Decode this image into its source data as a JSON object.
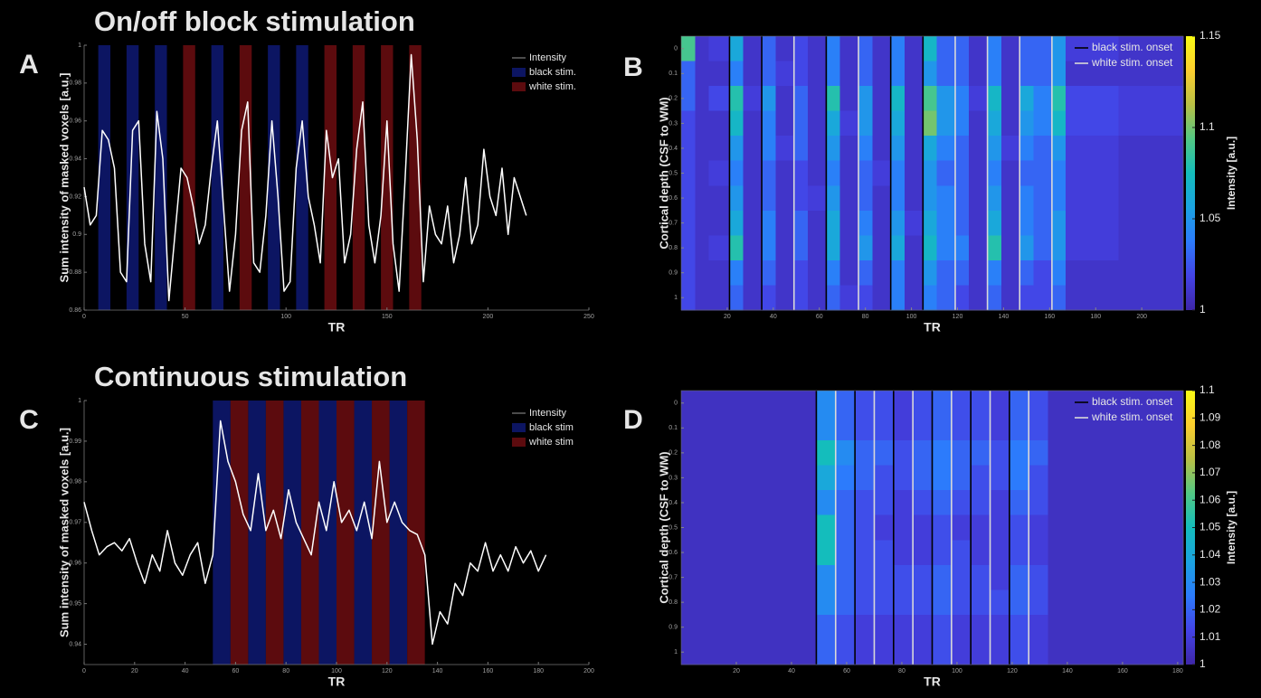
{
  "chart_data": [
    {
      "type": "line",
      "panel": "A",
      "title": "On/off block stimulation",
      "xlabel": "TR",
      "ylabel": "Sum intensity of masked voxels [a.u.]",
      "xlim": [
        0,
        250
      ],
      "xticks": [
        0,
        50,
        100,
        150,
        200,
        250
      ],
      "ylim": [
        0.86,
        1
      ],
      "yticks": [
        0.86,
        0.88,
        0.9,
        0.92,
        0.94,
        0.96,
        0.98,
        1
      ],
      "legend": "upper right",
      "x": [
        0,
        3,
        6,
        9,
        12,
        15,
        18,
        21,
        24,
        27,
        30,
        33,
        36,
        39,
        42,
        45,
        48,
        51,
        54,
        57,
        60,
        63,
        66,
        69,
        72,
        75,
        78,
        81,
        84,
        87,
        90,
        93,
        96,
        99,
        102,
        105,
        108,
        111,
        114,
        117,
        120,
        123,
        126,
        129,
        132,
        135,
        138,
        141,
        144,
        147,
        150,
        153,
        156,
        159,
        162,
        165,
        168,
        171,
        174,
        177,
        180,
        183,
        186,
        189,
        192,
        195,
        198,
        201,
        204,
        207,
        210,
        213,
        216,
        219
      ],
      "series": [
        {
          "name": "Intensity",
          "color": "#ffffff",
          "values": [
            0.925,
            0.905,
            0.91,
            0.955,
            0.95,
            0.935,
            0.88,
            0.875,
            0.955,
            0.96,
            0.895,
            0.875,
            0.965,
            0.94,
            0.865,
            0.9,
            0.935,
            0.93,
            0.915,
            0.895,
            0.905,
            0.935,
            0.96,
            0.915,
            0.87,
            0.9,
            0.955,
            0.97,
            0.885,
            0.88,
            0.91,
            0.96,
            0.92,
            0.87,
            0.875,
            0.935,
            0.96,
            0.92,
            0.905,
            0.885,
            0.955,
            0.93,
            0.94,
            0.885,
            0.9,
            0.945,
            0.97,
            0.905,
            0.885,
            0.91,
            0.96,
            0.895,
            0.87,
            0.93,
            0.995,
            0.95,
            0.875,
            0.915,
            0.9,
            0.895,
            0.915,
            0.885,
            0.9,
            0.93,
            0.895,
            0.905,
            0.945,
            0.92,
            0.91,
            0.935,
            0.9,
            0.93,
            0.92,
            0.91
          ]
        }
      ],
      "bands": [
        {
          "name": "black stim.",
          "color": "#0c1562",
          "intervals": [
            [
              7,
              13
            ],
            [
              21,
              27
            ],
            [
              35,
              41
            ],
            [
              63,
              69
            ],
            [
              91,
              97
            ],
            [
              105,
              111
            ]
          ]
        },
        {
          "name": "white stim.",
          "color": "#5c0b0e",
          "intervals": [
            [
              49,
              55
            ],
            [
              77,
              83
            ],
            [
              119,
              125
            ],
            [
              133,
              139
            ],
            [
              147,
              153
            ],
            [
              161,
              167
            ]
          ]
        }
      ]
    },
    {
      "type": "heatmap",
      "panel": "B",
      "xlabel": "TR",
      "ylabel": "Cortical depth (CSF to WM)",
      "colorbar_label": "Intensity [a.u.]",
      "xlim": [
        0,
        218
      ],
      "xticks": [
        20,
        40,
        60,
        80,
        100,
        120,
        140,
        160,
        180,
        200
      ],
      "ylim": [
        -0.05,
        1.05
      ],
      "yticks": [
        0,
        0.1,
        0.2,
        0.3,
        0.4,
        0.5,
        0.6,
        0.7,
        0.8,
        0.9,
        1
      ],
      "zlim": [
        1,
        1.15
      ],
      "zticks": [
        1,
        1.05,
        1.1,
        1.15
      ],
      "colormap": [
        "#3e26a8",
        "#4443e6",
        "#2c7bfc",
        "#1ba3e1",
        "#14bdbc",
        "#52c884",
        "#b9c045",
        "#fcce2e",
        "#f9fb14"
      ],
      "legend": "upper right",
      "x_edges": [
        0,
        6,
        12,
        21,
        27,
        35,
        41,
        49,
        55,
        63,
        69,
        77,
        83,
        91,
        97,
        105,
        111,
        119,
        125,
        133,
        139,
        147,
        153,
        161,
        167,
        190,
        218
      ],
      "values": [
        [
          1.09,
          1.03,
          1.03,
          1.02,
          1.02,
          1.02,
          1.02,
          1.02,
          1.02,
          1.02,
          1.02
        ],
        [
          1.01,
          1.01,
          1.01,
          1.01,
          1.01,
          1.01,
          1.01,
          1.01,
          1.01,
          1.01,
          1.01
        ],
        [
          1.015,
          1.01,
          1.02,
          1.01,
          1.01,
          1.015,
          1.01,
          1.01,
          1.015,
          1.01,
          1.01
        ],
        [
          1.06,
          1.04,
          1.08,
          1.07,
          1.05,
          1.04,
          1.05,
          1.06,
          1.08,
          1.04,
          1.03
        ],
        [
          1.01,
          1.01,
          1.015,
          1.01,
          1.01,
          1.01,
          1.01,
          1.01,
          1.01,
          1.01,
          1.01
        ],
        [
          1.03,
          1.03,
          1.05,
          1.04,
          1.04,
          1.03,
          1.03,
          1.04,
          1.04,
          1.03,
          1.02
        ],
        [
          1.01,
          1.015,
          1.01,
          1.01,
          1.015,
          1.01,
          1.01,
          1.01,
          1.01,
          1.01,
          1.01
        ],
        [
          1.02,
          1.02,
          1.03,
          1.03,
          1.03,
          1.02,
          1.02,
          1.03,
          1.03,
          1.02,
          1.02
        ],
        [
          1.01,
          1.01,
          1.01,
          1.01,
          1.01,
          1.01,
          1.015,
          1.01,
          1.01,
          1.01,
          1.01
        ],
        [
          1.04,
          1.04,
          1.08,
          1.06,
          1.05,
          1.04,
          1.05,
          1.06,
          1.06,
          1.04,
          1.03
        ],
        [
          1.01,
          1.01,
          1.01,
          1.015,
          1.01,
          1.01,
          1.01,
          1.01,
          1.01,
          1.01,
          1.015
        ],
        [
          1.03,
          1.03,
          1.05,
          1.05,
          1.04,
          1.03,
          1.03,
          1.04,
          1.05,
          1.03,
          1.02
        ],
        [
          1.01,
          1.01,
          1.01,
          1.01,
          1.01,
          1.015,
          1.01,
          1.01,
          1.01,
          1.01,
          1.01
        ],
        [
          1.04,
          1.04,
          1.07,
          1.06,
          1.05,
          1.04,
          1.04,
          1.05,
          1.06,
          1.04,
          1.04
        ],
        [
          1.01,
          1.01,
          1.01,
          1.01,
          1.01,
          1.01,
          1.01,
          1.015,
          1.01,
          1.01,
          1.01
        ],
        [
          1.07,
          1.05,
          1.09,
          1.1,
          1.06,
          1.05,
          1.05,
          1.06,
          1.07,
          1.05,
          1.04
        ],
        [
          1.03,
          1.03,
          1.05,
          1.05,
          1.04,
          1.03,
          1.04,
          1.04,
          1.04,
          1.03,
          1.03
        ],
        [
          1.03,
          1.03,
          1.04,
          1.04,
          1.03,
          1.03,
          1.03,
          1.03,
          1.04,
          1.03,
          1.02
        ],
        [
          1.01,
          1.01,
          1.015,
          1.01,
          1.01,
          1.01,
          1.01,
          1.01,
          1.01,
          1.01,
          1.01
        ],
        [
          1.04,
          1.04,
          1.07,
          1.06,
          1.05,
          1.04,
          1.05,
          1.06,
          1.08,
          1.04,
          1.03
        ],
        [
          1.01,
          1.01,
          1.01,
          1.01,
          1.015,
          1.01,
          1.01,
          1.01,
          1.01,
          1.01,
          1.01
        ],
        [
          1.03,
          1.03,
          1.06,
          1.05,
          1.04,
          1.03,
          1.04,
          1.04,
          1.05,
          1.03,
          1.02
        ],
        [
          1.03,
          1.03,
          1.04,
          1.04,
          1.03,
          1.03,
          1.03,
          1.03,
          1.03,
          1.02,
          1.02
        ],
        [
          1.05,
          1.05,
          1.08,
          1.07,
          1.05,
          1.04,
          1.04,
          1.05,
          1.05,
          1.04,
          1.03
        ],
        [
          1.015,
          1.01,
          1.02,
          1.02,
          1.015,
          1.015,
          1.015,
          1.015,
          1.015,
          1.01,
          1.01
        ],
        [
          1.01,
          1.01,
          1.015,
          1.015,
          1.01,
          1.01,
          1.01,
          1.01,
          1.01,
          1.01,
          1.01
        ]
      ],
      "onsets": [
        {
          "name": "black stim. onset",
          "color": "#000000",
          "values": [
            21,
            35,
            63,
            91,
            105
          ]
        },
        {
          "name": "white stim. onset",
          "color": "#d9d9d9",
          "values": [
            49,
            77,
            119,
            133,
            147,
            161
          ]
        }
      ]
    },
    {
      "type": "line",
      "panel": "C",
      "title": "Continuous stimulation",
      "xlabel": "TR",
      "ylabel": "Sum intensity of masked voxels [a.u.]",
      "xlim": [
        0,
        200
      ],
      "xticks": [
        0,
        20,
        40,
        60,
        80,
        100,
        120,
        140,
        160,
        180,
        200
      ],
      "ylim": [
        0.935,
        1
      ],
      "yticks": [
        0.94,
        0.95,
        0.96,
        0.97,
        0.98,
        0.99,
        1
      ],
      "legend": "upper right",
      "x": [
        0,
        3,
        6,
        9,
        12,
        15,
        18,
        21,
        24,
        27,
        30,
        33,
        36,
        39,
        42,
        45,
        48,
        51,
        54,
        57,
        60,
        63,
        66,
        69,
        72,
        75,
        78,
        81,
        84,
        87,
        90,
        93,
        96,
        99,
        102,
        105,
        108,
        111,
        114,
        117,
        120,
        123,
        126,
        129,
        132,
        135,
        138,
        141,
        144,
        147,
        150,
        153,
        156,
        159,
        162,
        165,
        168,
        171,
        174,
        177,
        180,
        183
      ],
      "series": [
        {
          "name": "Intensity",
          "color": "#ffffff",
          "values": [
            0.975,
            0.968,
            0.962,
            0.964,
            0.965,
            0.963,
            0.966,
            0.96,
            0.955,
            0.962,
            0.958,
            0.968,
            0.96,
            0.957,
            0.962,
            0.965,
            0.955,
            0.962,
            0.995,
            0.985,
            0.98,
            0.972,
            0.968,
            0.982,
            0.968,
            0.973,
            0.966,
            0.978,
            0.97,
            0.966,
            0.962,
            0.975,
            0.968,
            0.98,
            0.97,
            0.973,
            0.968,
            0.975,
            0.966,
            0.985,
            0.97,
            0.975,
            0.97,
            0.968,
            0.967,
            0.962,
            0.94,
            0.948,
            0.945,
            0.955,
            0.952,
            0.96,
            0.958,
            0.965,
            0.958,
            0.962,
            0.958,
            0.964,
            0.96,
            0.963,
            0.958,
            0.962
          ]
        }
      ],
      "bands": [
        {
          "name": "black stim",
          "color": "#0c1562",
          "intervals": [
            [
              51,
              58
            ],
            [
              65,
              72
            ],
            [
              79,
              86
            ],
            [
              93,
              100
            ],
            [
              107,
              114
            ],
            [
              121,
              128
            ]
          ]
        },
        {
          "name": "white stim",
          "color": "#5c0b0e",
          "intervals": [
            [
              58,
              65
            ],
            [
              72,
              79
            ],
            [
              86,
              93
            ],
            [
              100,
              107
            ],
            [
              114,
              121
            ],
            [
              128,
              135
            ]
          ]
        }
      ]
    },
    {
      "type": "heatmap",
      "panel": "D",
      "xlabel": "TR",
      "ylabel": "Cortical depth (CSF to WM)",
      "colorbar_label": "Intensity [a.u.]",
      "xlim": [
        0,
        182
      ],
      "xticks": [
        20,
        40,
        60,
        80,
        100,
        120,
        140,
        160,
        180
      ],
      "ylim": [
        -0.05,
        1.05
      ],
      "yticks": [
        0,
        0.1,
        0.2,
        0.3,
        0.4,
        0.5,
        0.6,
        0.7,
        0.8,
        0.9,
        1
      ],
      "zlim": [
        1,
        1.1
      ],
      "zticks": [
        1,
        1.01,
        1.02,
        1.03,
        1.04,
        1.05,
        1.06,
        1.07,
        1.08,
        1.09,
        1.1
      ],
      "colormap": [
        "#3e26a8",
        "#4443e6",
        "#2c7bfc",
        "#1ba3e1",
        "#14bdbc",
        "#52c884",
        "#b9c045",
        "#fcce2e",
        "#f9fb14"
      ],
      "legend": "upper right",
      "x_edges": [
        0,
        49,
        56,
        63,
        70,
        77,
        84,
        91,
        98,
        105,
        112,
        119,
        126,
        133,
        182
      ],
      "values": [
        [
          1.005,
          1.005,
          1.005,
          1.005,
          1.005,
          1.005,
          1.005,
          1.005,
          1.005,
          1.005,
          1.005
        ],
        [
          1.03,
          1.03,
          1.05,
          1.04,
          1.03,
          1.05,
          1.05,
          1.03,
          1.03,
          1.02,
          1.02
        ],
        [
          1.02,
          1.02,
          1.03,
          1.025,
          1.02,
          1.02,
          1.02,
          1.02,
          1.02,
          1.015,
          1.015
        ],
        [
          1.015,
          1.015,
          1.02,
          1.02,
          1.015,
          1.015,
          1.015,
          1.015,
          1.015,
          1.01,
          1.01
        ],
        [
          1.015,
          1.015,
          1.02,
          1.015,
          1.015,
          1.01,
          1.015,
          1.015,
          1.015,
          1.01,
          1.01
        ],
        [
          1.01,
          1.01,
          1.015,
          1.015,
          1.01,
          1.01,
          1.01,
          1.015,
          1.015,
          1.01,
          1.01
        ],
        [
          1.015,
          1.015,
          1.02,
          1.02,
          1.015,
          1.01,
          1.01,
          1.015,
          1.015,
          1.01,
          1.01
        ],
        [
          1.02,
          1.02,
          1.025,
          1.025,
          1.02,
          1.015,
          1.015,
          1.02,
          1.02,
          1.015,
          1.015
        ],
        [
          1.015,
          1.015,
          1.02,
          1.02,
          1.015,
          1.01,
          1.015,
          1.015,
          1.015,
          1.01,
          1.01
        ],
        [
          1.015,
          1.015,
          1.02,
          1.015,
          1.015,
          1.01,
          1.01,
          1.015,
          1.015,
          1.01,
          1.01
        ],
        [
          1.01,
          1.01,
          1.015,
          1.015,
          1.01,
          1.01,
          1.01,
          1.01,
          1.015,
          1.01,
          1.01
        ],
        [
          1.02,
          1.02,
          1.025,
          1.025,
          1.02,
          1.015,
          1.015,
          1.02,
          1.02,
          1.015,
          1.015
        ],
        [
          1.015,
          1.015,
          1.02,
          1.015,
          1.015,
          1.01,
          1.01,
          1.015,
          1.015,
          1.01,
          1.01
        ],
        [
          1.005,
          1.005,
          1.005,
          1.005,
          1.005,
          1.005,
          1.005,
          1.005,
          1.005,
          1.005,
          1.005
        ]
      ],
      "onsets": [
        {
          "name": "black stim. onset",
          "color": "#000000",
          "values": [
            49,
            63,
            77,
            91,
            105,
            119
          ]
        },
        {
          "name": "white stim. onset",
          "color": "#d9d9d9",
          "values": [
            56,
            70,
            84,
            98,
            112,
            126
          ]
        }
      ]
    }
  ]
}
